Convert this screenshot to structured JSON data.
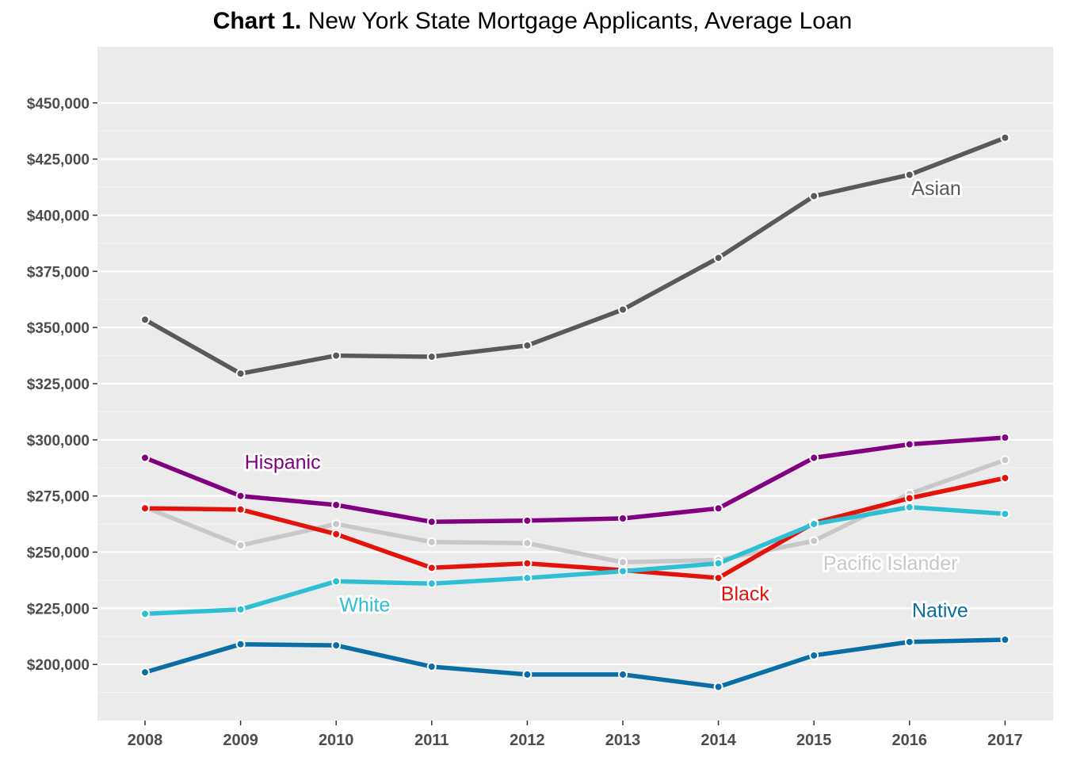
{
  "title": {
    "prefix": "Chart 1.",
    "text": "New York State Mortgage Applicants, Average Loan"
  },
  "chart_data": {
    "type": "line",
    "title": "Chart 1. New York State Mortgage Applicants, Average Loan",
    "xlabel": "",
    "ylabel": "",
    "x": [
      "2008",
      "2009",
      "2010",
      "2011",
      "2012",
      "2013",
      "2014",
      "2015",
      "2016",
      "2017"
    ],
    "ylim": [
      175000,
      475000
    ],
    "yticks": [
      200000,
      225000,
      250000,
      275000,
      300000,
      325000,
      350000,
      375000,
      400000,
      425000,
      450000
    ],
    "ytick_labels": [
      "$200,000",
      "$225,000",
      "$250,000",
      "$275,000",
      "$300,000",
      "$325,000",
      "$350,000",
      "$375,000",
      "$400,000",
      "$425,000",
      "$450,000"
    ],
    "grid": "horizontal",
    "legend": "none (direct labels)",
    "background": "#ebebeb",
    "series": [
      {
        "name": "Asian",
        "color": "#595959",
        "values": [
          353500,
          329500,
          337500,
          337000,
          342000,
          358000,
          381000,
          408500,
          418000,
          434500
        ]
      },
      {
        "name": "Hispanic",
        "color": "#800080",
        "values": [
          292000,
          275000,
          271000,
          263500,
          264000,
          265000,
          269500,
          292000,
          298000,
          301000
        ]
      },
      {
        "name": "Pacific Islander",
        "color": "#c8c8c8",
        "values": [
          270000,
          253000,
          262500,
          254500,
          254000,
          245500,
          246500,
          255000,
          276000,
          291000
        ]
      },
      {
        "name": "Black",
        "color": "#e3120b",
        "values": [
          269500,
          269000,
          258000,
          243000,
          245000,
          242000,
          238500,
          263000,
          274000,
          283000
        ]
      },
      {
        "name": "White",
        "color": "#2ebfd4",
        "values": [
          222500,
          224500,
          237000,
          236000,
          238500,
          241500,
          245000,
          262500,
          270000,
          267000
        ]
      },
      {
        "name": "Native",
        "color": "#0a6ea5",
        "values": [
          196500,
          209000,
          208500,
          199000,
          195500,
          195500,
          190000,
          204000,
          210000,
          211000
        ]
      }
    ],
    "labels": [
      {
        "text": "Asian",
        "series": "Asian",
        "x": "2016.28",
        "y": 409000
      },
      {
        "text": "Hispanic",
        "series": "Hispanic",
        "x": "2009.44",
        "y": 287000
      },
      {
        "text": "Pacific Islander",
        "series": "Pacific Islander",
        "x": "2015.8",
        "y": 242000
      },
      {
        "text": "Black",
        "series": "Black",
        "x": "2014.28",
        "y": 228500
      },
      {
        "text": "White",
        "series": "White",
        "x": "2010.3",
        "y": 223500
      },
      {
        "text": "Native",
        "series": "Native",
        "x": "2016.32",
        "y": 221000
      }
    ]
  }
}
